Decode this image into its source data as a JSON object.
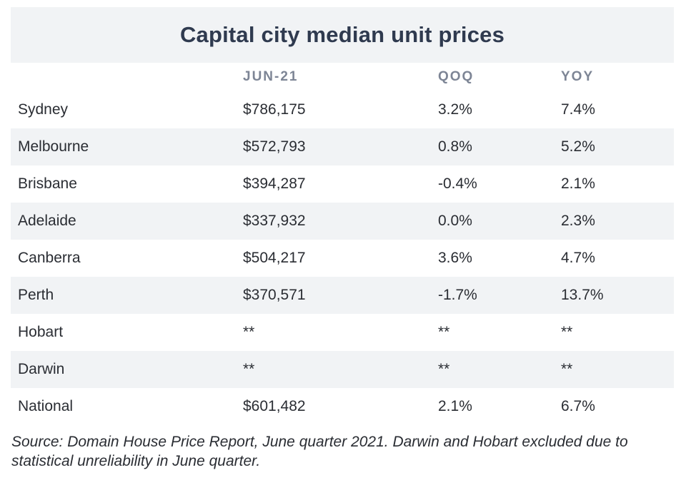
{
  "title": "Capital city median unit prices",
  "headers": [
    "",
    "JUN-21",
    "QOQ",
    "YOY"
  ],
  "rows": [
    {
      "city": "Sydney",
      "price": "$786,175",
      "qoq": "3.2%",
      "yoy": "7.4%"
    },
    {
      "city": "Melbourne",
      "price": "$572,793",
      "qoq": "0.8%",
      "yoy": "5.2%"
    },
    {
      "city": "Brisbane",
      "price": "$394,287",
      "qoq": "-0.4%",
      "yoy": "2.1%"
    },
    {
      "city": "Adelaide",
      "price": "$337,932",
      "qoq": "0.0%",
      "yoy": "2.3%"
    },
    {
      "city": "Canberra",
      "price": "$504,217",
      "qoq": "3.6%",
      "yoy": "4.7%"
    },
    {
      "city": "Perth",
      "price": "$370,571",
      "qoq": "-1.7%",
      "yoy": "13.7%"
    },
    {
      "city": "Hobart",
      "price": "**",
      "qoq": "**",
      "yoy": "**"
    },
    {
      "city": "Darwin",
      "price": "**",
      "qoq": "**",
      "yoy": "**"
    },
    {
      "city": "National",
      "price": "$601,482",
      "qoq": "2.1%",
      "yoy": "6.7%"
    }
  ],
  "source": "Source: Domain House Price Report, June quarter 2021. Darwin and Hobart excluded due to statistical unreliability in June quarter.",
  "colors": {
    "title_bg": "#f1f3f5",
    "title_text": "#2f3a4f",
    "header_text": "#7d8595",
    "stripe": "#f1f3f5"
  }
}
